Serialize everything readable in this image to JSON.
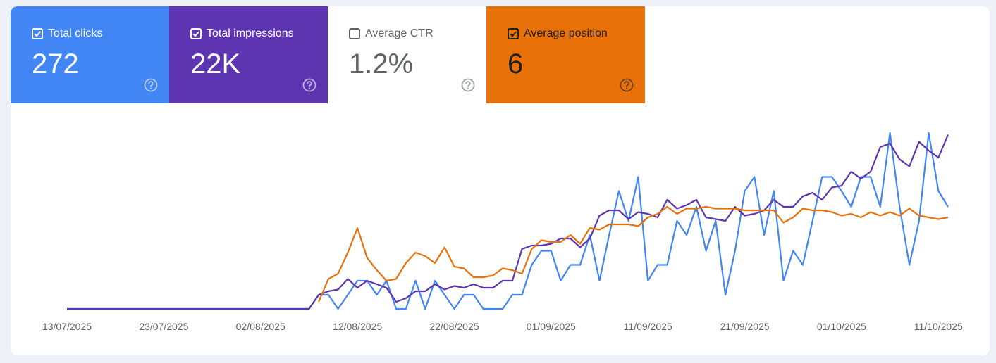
{
  "cards": [
    {
      "label": "Total clicks",
      "value": "272",
      "checked": true,
      "color": "#4285f4",
      "text_color": "#ffffff"
    },
    {
      "label": "Total impressions",
      "value": "22K",
      "checked": true,
      "color": "#5e35b1",
      "text_color": "#ffffff"
    },
    {
      "label": "Average CTR",
      "value": "1.2%",
      "checked": false,
      "color": "#ffffff",
      "text_color": "#5f6368"
    },
    {
      "label": "Average position",
      "value": "6",
      "checked": true,
      "color": "#e8710a",
      "text_color": "#202124"
    }
  ],
  "chart_data": {
    "type": "line",
    "categories": [
      "13/07/2025",
      null,
      null,
      null,
      null,
      null,
      null,
      null,
      null,
      null,
      "23/07/2025",
      null,
      null,
      null,
      null,
      null,
      null,
      null,
      null,
      null,
      "02/08/2025",
      null,
      null,
      null,
      null,
      null,
      null,
      null,
      null,
      null,
      "12/08/2025",
      null,
      null,
      null,
      null,
      null,
      null,
      null,
      null,
      null,
      "22/08/2025",
      null,
      null,
      null,
      null,
      null,
      null,
      null,
      null,
      null,
      "01/09/2025",
      null,
      null,
      null,
      null,
      null,
      null,
      null,
      null,
      null,
      "11/09/2025",
      null,
      null,
      null,
      null,
      null,
      null,
      null,
      null,
      null,
      "21/09/2025",
      null,
      null,
      null,
      null,
      null,
      null,
      null,
      null,
      null,
      "01/10/2025",
      null,
      null,
      null,
      null,
      null,
      null,
      null,
      null,
      null,
      "11/10/2025",
      null
    ],
    "ylim": [
      0,
      100
    ],
    "series": [
      {
        "color": "#4285f4",
        "values": [
          0,
          0,
          0,
          0,
          0,
          0,
          0,
          0,
          0,
          0,
          0,
          0,
          0,
          0,
          0,
          0,
          0,
          0,
          0,
          0,
          0,
          0,
          0,
          0,
          0,
          0,
          8,
          8,
          0,
          8,
          16,
          16,
          8,
          16,
          0,
          0,
          16,
          0,
          16,
          8,
          0,
          8,
          8,
          0,
          0,
          0,
          8,
          8,
          25,
          33,
          33,
          16,
          25,
          25,
          42,
          16,
          42,
          67,
          50,
          75,
          16,
          25,
          25,
          50,
          42,
          58,
          33,
          50,
          8,
          33,
          67,
          75,
          42,
          67,
          16,
          33,
          25,
          50,
          75,
          75,
          67,
          58,
          75,
          75,
          58,
          100,
          58,
          25,
          50,
          100,
          67,
          58
        ]
      },
      {
        "color": "#5e35b1",
        "values": [
          0,
          0,
          0,
          0,
          0,
          0,
          0,
          0,
          0,
          0,
          0,
          0,
          0,
          0,
          0,
          0,
          0,
          0,
          0,
          0,
          0,
          0,
          0,
          0,
          0,
          0,
          8,
          10,
          11,
          17,
          12,
          16,
          14,
          12,
          4,
          6,
          10,
          10,
          14,
          11,
          13,
          12,
          14,
          12,
          12,
          16,
          16,
          34,
          36,
          36,
          37,
          40,
          40,
          35,
          40,
          53,
          56,
          56,
          51,
          55,
          54,
          52,
          62,
          57,
          59,
          62,
          52,
          51,
          50,
          58,
          53,
          54,
          56,
          62,
          58,
          58,
          64,
          66,
          62,
          69,
          70,
          78,
          74,
          78,
          92,
          94,
          85,
          81,
          95,
          90,
          86,
          99
        ]
      },
      {
        "color": "#e8710a",
        "values": [
          null,
          null,
          null,
          null,
          null,
          null,
          null,
          null,
          null,
          null,
          null,
          null,
          null,
          null,
          null,
          null,
          null,
          null,
          null,
          null,
          null,
          null,
          null,
          null,
          null,
          null,
          4,
          17,
          20,
          32,
          46,
          29,
          22,
          16,
          17,
          26,
          32,
          30,
          26,
          35,
          24,
          23,
          18,
          18,
          19,
          23,
          22,
          20,
          34,
          39,
          38,
          38,
          42,
          37,
          46,
          45,
          48,
          48,
          48,
          47,
          52,
          54,
          58,
          54,
          57,
          57,
          58,
          57,
          57,
          57,
          56,
          56,
          56,
          56,
          49,
          52,
          57,
          56,
          56,
          55,
          53,
          54,
          52,
          55,
          53,
          55,
          53,
          57,
          53,
          52,
          51,
          52
        ]
      }
    ]
  }
}
